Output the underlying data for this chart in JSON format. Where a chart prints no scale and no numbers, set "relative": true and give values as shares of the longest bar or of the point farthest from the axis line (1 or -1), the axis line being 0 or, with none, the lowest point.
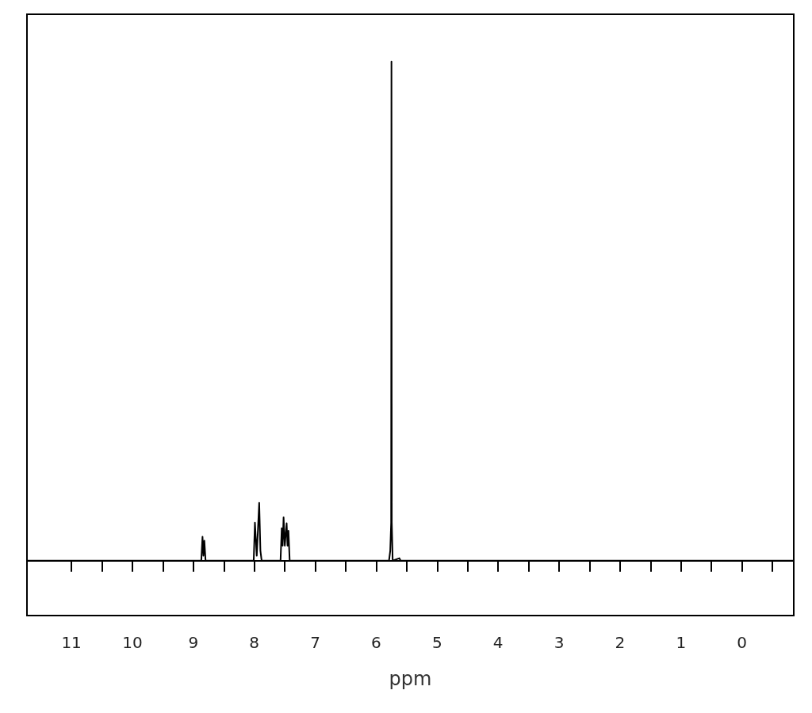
{
  "chart_data": {
    "type": "line",
    "xlabel": "ppm",
    "relative": true,
    "marker": "none",
    "tick_labels": "x",
    "xlim": [
      11.73,
      -0.85
    ],
    "xticks": [
      11,
      {
        "value": 10.5,
        "label": null
      },
      10,
      {
        "value": 9.5,
        "label": null
      },
      9,
      {
        "value": 8.5,
        "label": null
      },
      8,
      {
        "value": 7.5,
        "label": null
      },
      7,
      {
        "value": 6.5,
        "label": null
      },
      6,
      {
        "value": 5.5,
        "label": null
      },
      5,
      {
        "value": 4.5,
        "label": null
      },
      4,
      {
        "value": 3.5,
        "label": null
      },
      3,
      {
        "value": 2.5,
        "label": null
      },
      2,
      {
        "value": 1.5,
        "label": null
      },
      1,
      {
        "value": 0.5,
        "label": null
      },
      0,
      {
        "value": -0.5,
        "label": null
      }
    ],
    "series": [
      {
        "color": "#000000",
        "x": [
          11.73,
          8.87,
          8.85,
          8.835,
          8.82,
          8.8,
          8.01,
          7.99,
          7.96,
          7.92,
          7.9,
          7.88,
          7.57,
          7.55,
          7.535,
          7.52,
          7.5,
          7.47,
          7.455,
          7.44,
          7.42,
          5.79,
          5.77,
          5.755,
          5.75,
          5.745,
          5.73,
          5.62,
          5.6,
          -0.85
        ],
        "values": [
          0,
          0,
          0.048,
          0.01,
          0.04,
          0,
          0,
          0.076,
          0.01,
          0.116,
          0.02,
          0,
          0,
          0.065,
          0.03,
          0.087,
          0.03,
          0.075,
          0.03,
          0.06,
          0,
          0,
          0.02,
          0.076,
          1,
          0.076,
          0,
          0.005,
          0,
          0
        ]
      }
    ]
  }
}
